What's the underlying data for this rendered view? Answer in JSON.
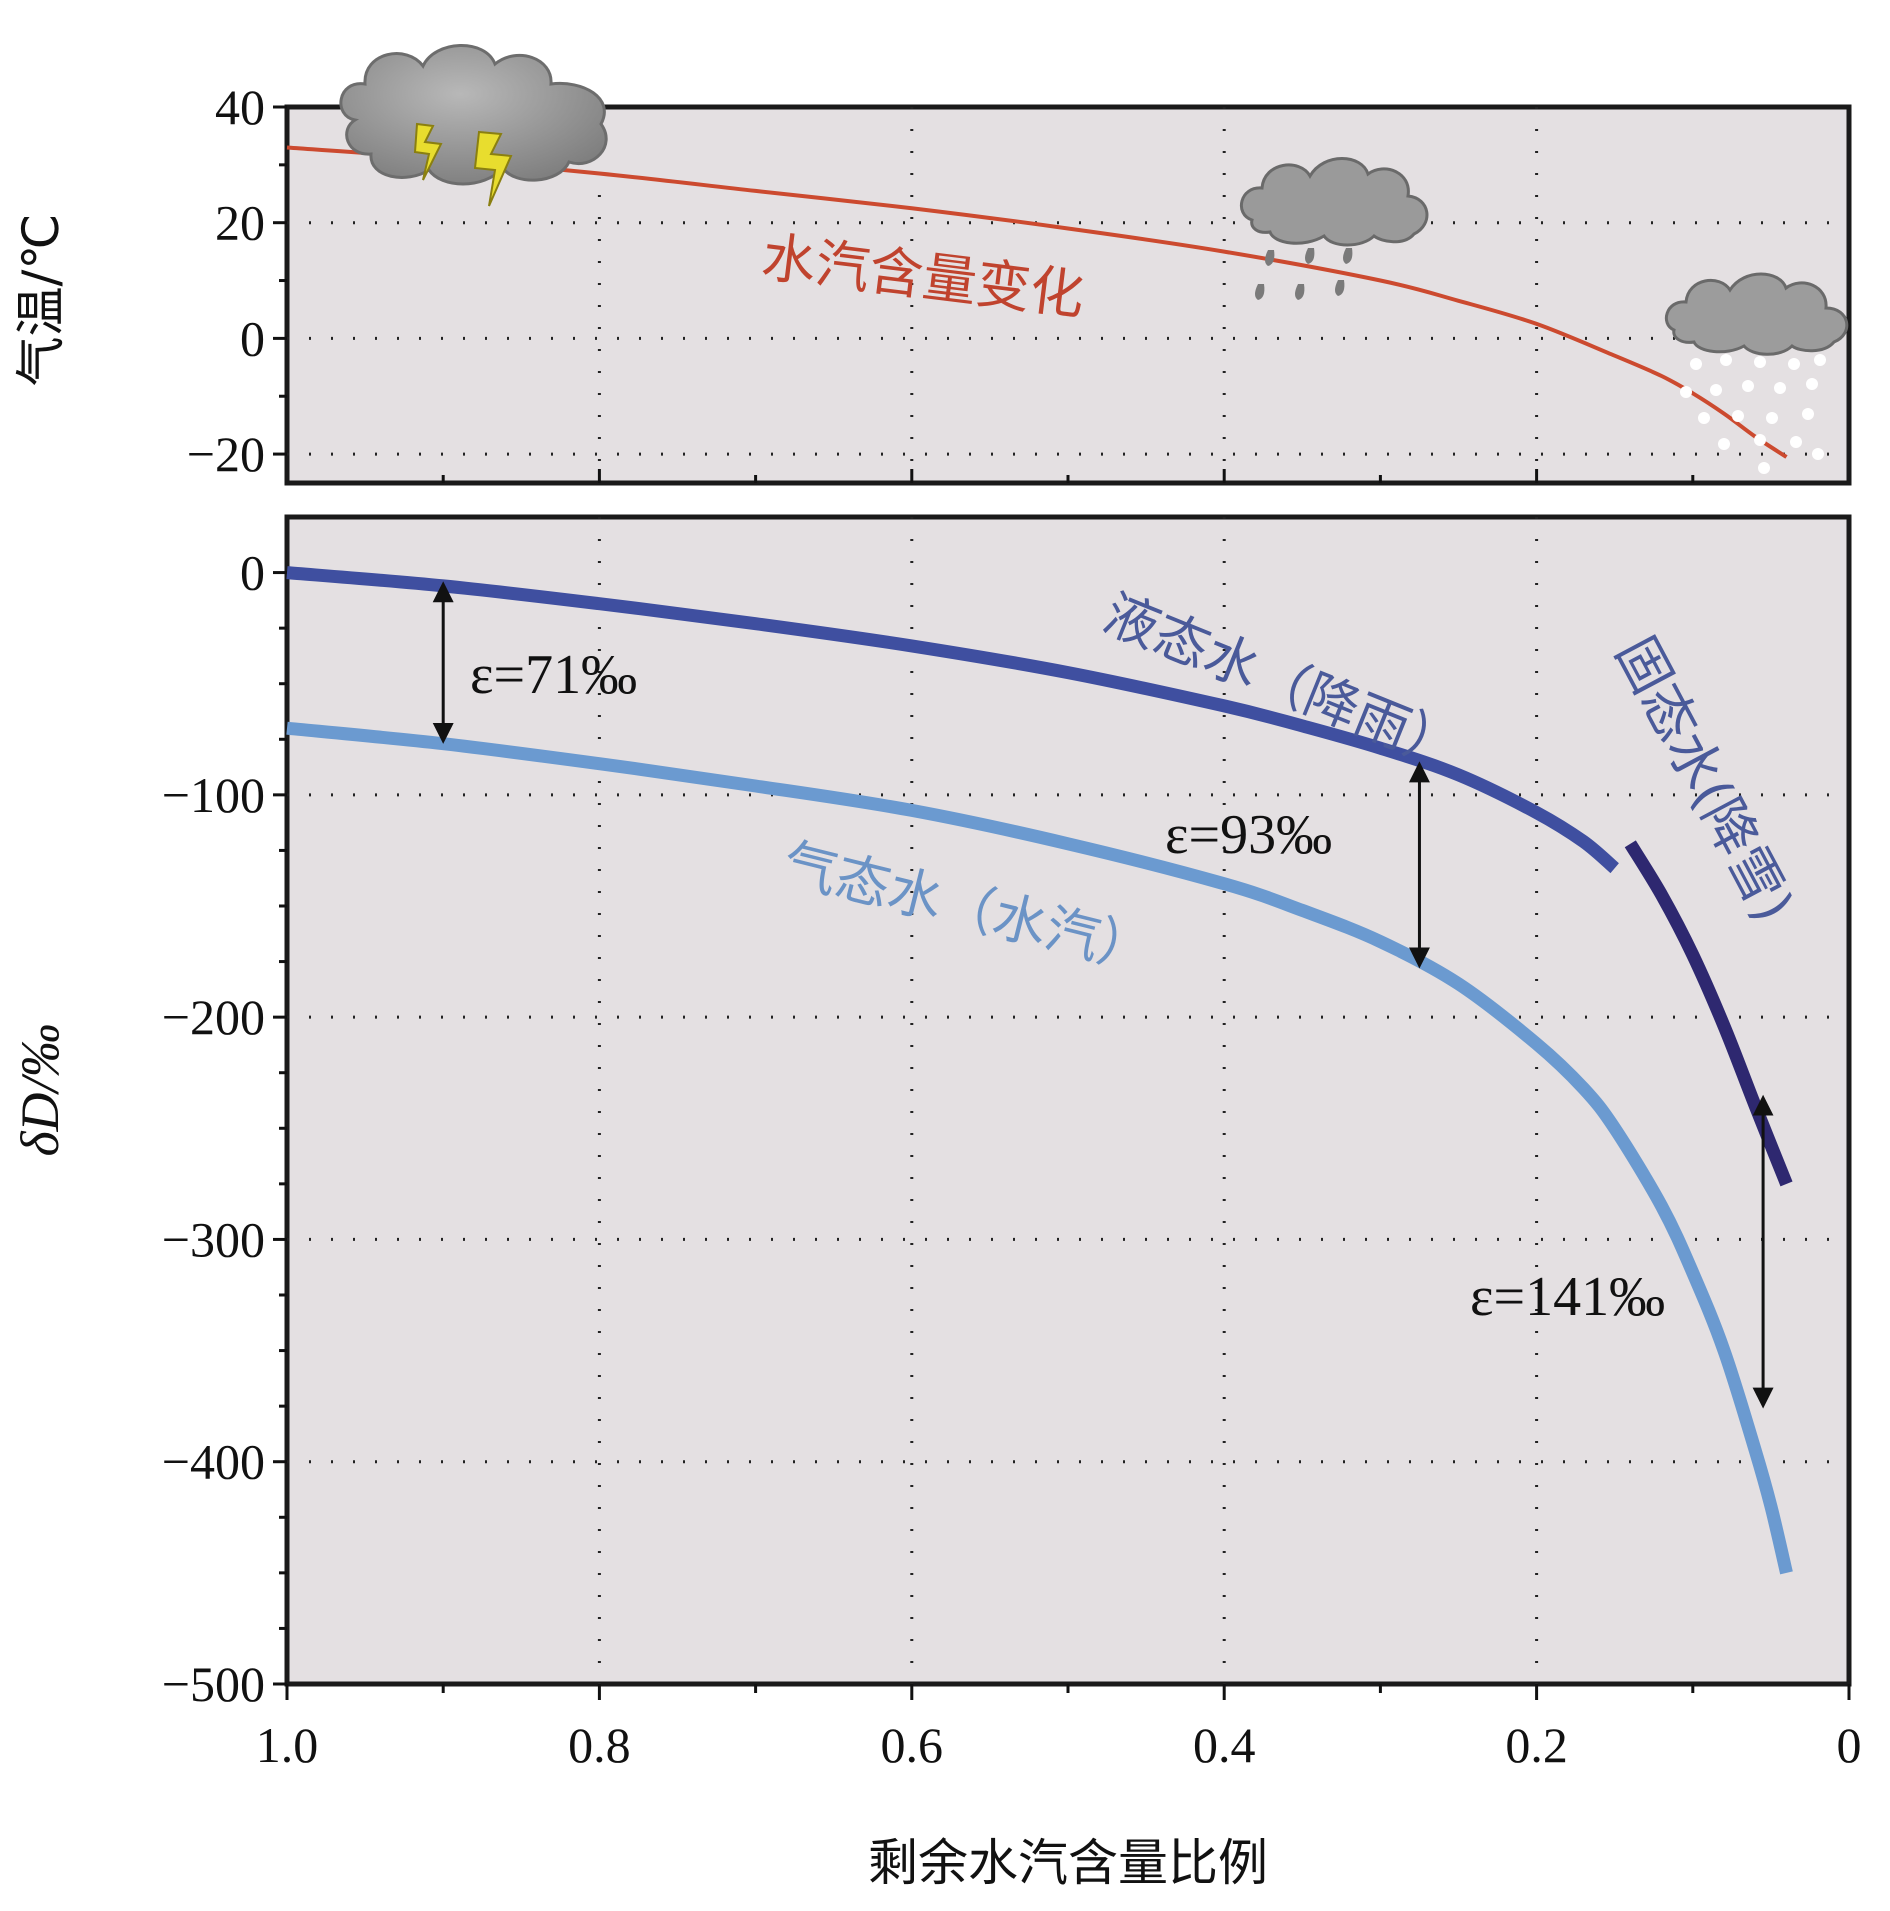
{
  "chart_data": [
    {
      "type": "line",
      "ylabel": "气温/℃",
      "xlim": [
        1.0,
        0
      ],
      "ylim": [
        -25,
        40
      ],
      "yticks": [
        40,
        20,
        0,
        -20
      ],
      "ytick_labels": [
        "40",
        "20",
        "0",
        "−20"
      ],
      "grid": true,
      "series": [
        {
          "color": "#cc4a2f",
          "x": [
            1.0,
            0.9,
            0.8,
            0.7,
            0.6,
            0.5,
            0.4,
            0.3,
            0.25,
            0.2,
            0.15,
            0.12,
            0.1,
            0.08,
            0.06,
            0.04
          ],
          "y": [
            33,
            31,
            28.5,
            25.5,
            22.5,
            19,
            15,
            10,
            6.5,
            2.5,
            -3,
            -6.5,
            -9.5,
            -13,
            -17,
            -20.5
          ]
        }
      ],
      "annotations": [
        {
          "text": "水汽含量变化",
          "color": "#c0432e",
          "x": 0.7,
          "y": 10
        }
      ],
      "icons": [
        "thunderstorm-cloud-icon",
        "rain-cloud-icon",
        "snow-cloud-icon"
      ]
    },
    {
      "type": "line",
      "ylabel": "δD/‰",
      "xlabel": "剩余水汽含量比例",
      "xlim": [
        1.0,
        0
      ],
      "ylim": [
        -500,
        25
      ],
      "xticks": [
        1.0,
        0.8,
        0.6,
        0.4,
        0.2,
        0
      ],
      "xtick_labels": [
        "1.0",
        "0.8",
        "0.6",
        "0.4",
        "0.2",
        "0"
      ],
      "yticks": [
        0,
        -100,
        -200,
        -300,
        -400,
        -500
      ],
      "ytick_labels": [
        "0",
        "−100",
        "−200",
        "−300",
        "−400",
        "−500"
      ],
      "grid": true,
      "series": [
        {
          "name": "液态水（降雨）",
          "color": "#3f4fa0",
          "x": [
            1.0,
            0.9,
            0.8,
            0.7,
            0.6,
            0.5,
            0.4,
            0.35,
            0.3,
            0.25,
            0.2,
            0.17,
            0.15
          ],
          "y": [
            0,
            -6,
            -14,
            -23,
            -33,
            -45,
            -60,
            -69,
            -79,
            -91,
            -108,
            -121,
            -133
          ]
        },
        {
          "name": "固态水(降雪)",
          "color": "#2e2870",
          "x": [
            0.14,
            0.12,
            0.1,
            0.08,
            0.06,
            0.04
          ],
          "y": [
            -122,
            -145,
            -172,
            -204,
            -240,
            -275
          ]
        },
        {
          "name": "气态水（水汽）",
          "color": "#6b9ad0",
          "x": [
            1.0,
            0.9,
            0.8,
            0.7,
            0.6,
            0.5,
            0.4,
            0.35,
            0.3,
            0.25,
            0.2,
            0.17,
            0.15,
            0.12,
            0.1,
            0.08,
            0.06,
            0.05,
            0.04
          ],
          "y": [
            -70,
            -77,
            -86,
            -96,
            -107,
            -122,
            -140,
            -152,
            -166,
            -185,
            -212,
            -232,
            -250,
            -285,
            -315,
            -350,
            -395,
            -420,
            -450
          ]
        }
      ],
      "annotations": [
        {
          "text": "ε=71‰",
          "x": 0.9,
          "y_top": -4,
          "y_bottom": -77
        },
        {
          "text": "ε=93‰",
          "x": 0.275,
          "y_top": -85,
          "y_bottom": -178
        },
        {
          "text": "ε=141‰",
          "x": 0.055,
          "y_top": -235,
          "y_bottom": -376
        }
      ]
    }
  ]
}
